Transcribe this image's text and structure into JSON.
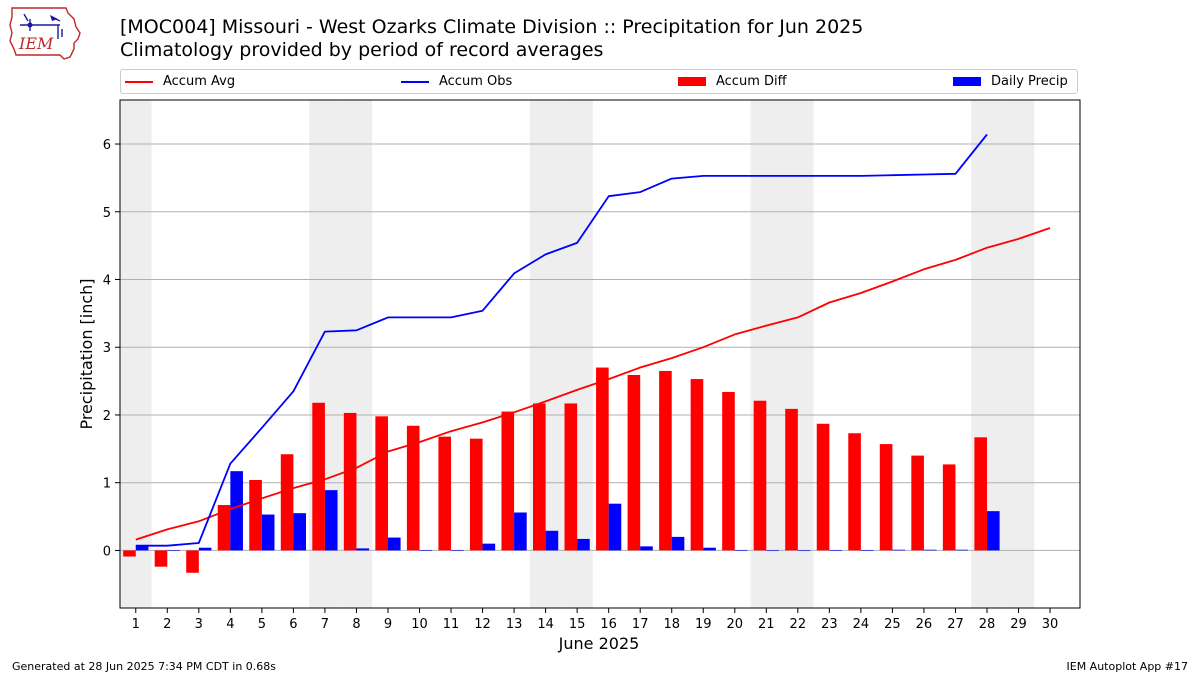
{
  "logo": {
    "text": "IEM"
  },
  "header": {
    "title": "[MOC004] Missouri - West Ozarks Climate Division :: Precipitation for Jun 2025",
    "subtitle": "Climatology provided by period of record averages"
  },
  "footer": {
    "left": "Generated at 28 Jun 2025 7:34 PM CDT in 0.68s",
    "right": "IEM Autoplot App #17"
  },
  "colors": {
    "red": "#ff0000",
    "blue": "#0000ff",
    "weekend_shade": "#eeeeee",
    "grid": "#b0b0b0"
  },
  "chart_data": {
    "type": "bar",
    "xlabel": "June 2025",
    "ylabel": "Precipitation [inch]",
    "categories": [
      "1",
      "2",
      "3",
      "4",
      "5",
      "6",
      "7",
      "8",
      "9",
      "10",
      "11",
      "12",
      "13",
      "14",
      "15",
      "16",
      "17",
      "18",
      "19",
      "20",
      "21",
      "22",
      "23",
      "24",
      "25",
      "26",
      "27",
      "28",
      "29",
      "30"
    ],
    "ylim": [
      -0.85,
      6.65
    ],
    "yticks": [
      "0",
      "1",
      "2",
      "3",
      "4",
      "5",
      "6"
    ],
    "grid": true,
    "legend_position": "top",
    "shaded_days": [
      1,
      7,
      8,
      14,
      15,
      21,
      22,
      28,
      29
    ],
    "series": [
      {
        "name": "Accum Avg",
        "kind": "line",
        "color": "#ff0000",
        "values": [
          0.16,
          0.31,
          0.43,
          0.61,
          0.77,
          0.92,
          1.05,
          1.22,
          1.46,
          1.6,
          1.76,
          1.89,
          2.04,
          2.2,
          2.37,
          2.53,
          2.7,
          2.84,
          3.0,
          3.19,
          3.32,
          3.44,
          3.66,
          3.8,
          3.97,
          4.15,
          4.29,
          4.47,
          4.6,
          4.76
        ]
      },
      {
        "name": "Accum Obs",
        "kind": "line",
        "color": "#0000ff",
        "values": [
          0.07,
          0.07,
          0.11,
          1.28,
          1.81,
          2.35,
          3.23,
          3.25,
          3.44,
          3.44,
          3.44,
          3.54,
          4.09,
          4.37,
          4.54,
          5.23,
          5.29,
          5.49,
          5.53,
          5.53,
          5.53,
          5.53,
          5.53,
          5.53,
          5.54,
          5.55,
          5.56,
          6.14,
          null,
          null
        ]
      },
      {
        "name": "Accum Diff",
        "kind": "bar",
        "color": "#ff0000",
        "values": [
          -0.09,
          -0.24,
          -0.33,
          0.67,
          1.04,
          1.42,
          2.18,
          2.03,
          1.98,
          1.84,
          1.68,
          1.65,
          2.05,
          2.17,
          2.17,
          2.7,
          2.59,
          2.65,
          2.53,
          2.34,
          2.21,
          2.09,
          1.87,
          1.73,
          1.57,
          1.4,
          1.27,
          1.67,
          null,
          null
        ]
      },
      {
        "name": "Daily Precip",
        "kind": "bar",
        "color": "#0000ff",
        "values": [
          0.07,
          0.0,
          0.04,
          1.17,
          0.53,
          0.55,
          0.89,
          0.03,
          0.19,
          0.0,
          0.0,
          0.1,
          0.56,
          0.29,
          0.17,
          0.69,
          0.06,
          0.2,
          0.04,
          0.0,
          0.0,
          0.0,
          0.0,
          0.0,
          0.01,
          0.01,
          0.01,
          0.58,
          null,
          null
        ]
      }
    ]
  }
}
